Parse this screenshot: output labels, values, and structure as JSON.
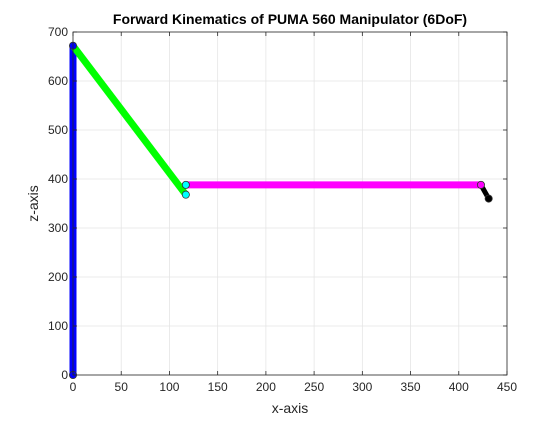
{
  "chart_data": {
    "type": "line",
    "title": "Forward Kinematics of PUMA 560 Manipulator (6DoF)",
    "xlabel": "x-axis",
    "ylabel": "z-axis",
    "xlim": [
      0,
      450
    ],
    "ylim": [
      0,
      700
    ],
    "xticks": [
      0,
      50,
      100,
      150,
      200,
      250,
      300,
      350,
      400,
      450
    ],
    "yticks": [
      0,
      100,
      200,
      300,
      400,
      500,
      600,
      700
    ],
    "grid": true,
    "background": "#ffffff",
    "grid_color": "#e5e5e5",
    "axis_color": "#262626",
    "series": [
      {
        "color": "#0000ff",
        "x": [
          0,
          0
        ],
        "z": [
          0,
          672
        ],
        "linewidth": "thick"
      },
      {
        "color": "#00ff00",
        "x": [
          0,
          117
        ],
        "z": [
          672,
          368
        ],
        "linewidth": "thick"
      },
      {
        "color": "#ff00ff",
        "x": [
          117,
          423
        ],
        "z": [
          388,
          388
        ],
        "linewidth": "thick"
      },
      {
        "color": "#000000",
        "x": [
          423,
          431
        ],
        "z": [
          388,
          360
        ],
        "linewidth": "medium"
      }
    ],
    "joints": [
      {
        "x": 0,
        "z": 0,
        "fill": "#0000ff"
      },
      {
        "x": 0,
        "z": 672,
        "fill": "#0000ff"
      },
      {
        "x": 117,
        "z": 368,
        "fill": "#00ffff"
      },
      {
        "x": 117,
        "z": 388,
        "fill": "#00ffff"
      },
      {
        "x": 423,
        "z": 388,
        "fill": "#ff00ff"
      },
      {
        "x": 431,
        "z": 360,
        "fill": "#000000"
      }
    ]
  }
}
